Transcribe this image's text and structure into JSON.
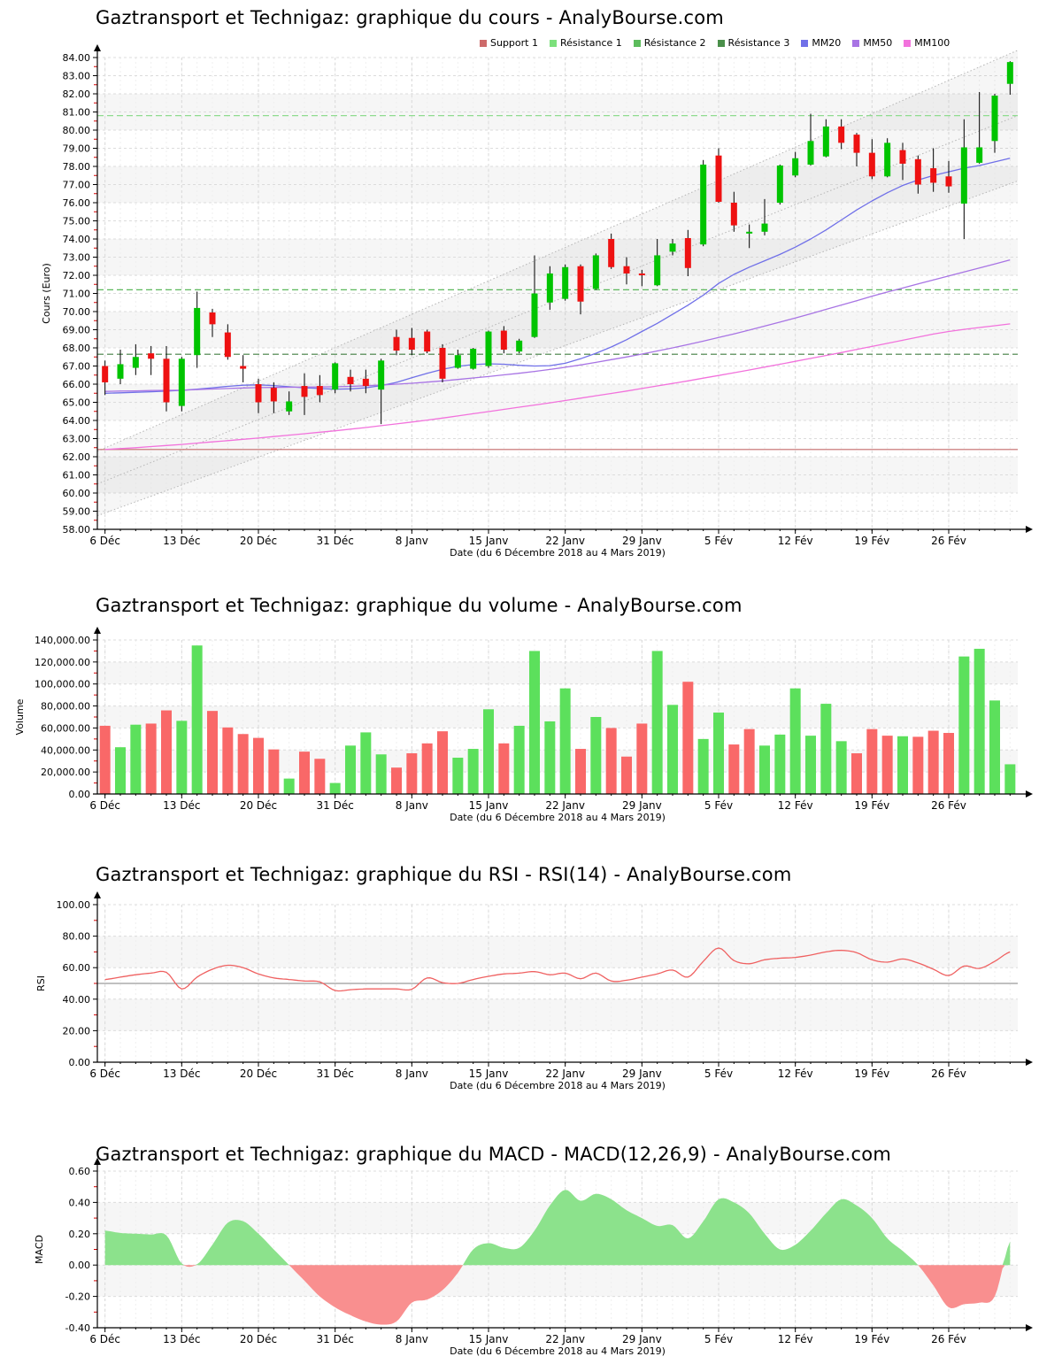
{
  "x_axis": {
    "title": "Date (du 6 Décembre 2018 au 4 Mars 2019)",
    "tick_labels": [
      "6 Déc",
      "13 Déc",
      "20 Déc",
      "31 Déc",
      "8 Janv",
      "15 Janv",
      "22 Janv",
      "29 Janv",
      "5 Fév",
      "12 Fév",
      "19 Fév",
      "26 Fév"
    ],
    "tick_indices": [
      0,
      5,
      10,
      15,
      20,
      25,
      30,
      35,
      40,
      45,
      50,
      55
    ],
    "n_points": 60
  },
  "chart_data": [
    {
      "type": "candlestick",
      "title": "Gaztransport et Technigaz: graphique du cours - AnalyBourse.com",
      "ylabel": "Cours (Euro)",
      "ylim": [
        58,
        84
      ],
      "ystep": 1,
      "up_color": "#00c400",
      "down_color": "#ee1111",
      "legend": [
        {
          "label": "Support 1",
          "color": "#cd6a6a"
        },
        {
          "label": "Résistance 1",
          "color": "#7ce07c"
        },
        {
          "label": "Résistance 2",
          "color": "#5cbc5c"
        },
        {
          "label": "Résistance 3",
          "color": "#4a8f4a"
        },
        {
          "label": "MM20",
          "color": "#7070e8"
        },
        {
          "label": "MM50",
          "color": "#a874e4"
        },
        {
          "label": "MM100",
          "color": "#f272dc"
        }
      ],
      "levels": [
        {
          "name": "Support 1",
          "value": 62.4,
          "color": "#c46a6a",
          "dash": "solid"
        },
        {
          "name": "Résistance 1",
          "value": 80.8,
          "color": "#8fdc8f",
          "dash": "dashed"
        },
        {
          "name": "Résistance 2",
          "value": 71.2,
          "color": "#5cb85c",
          "dash": "dashed"
        },
        {
          "name": "Résistance 3",
          "value": 67.65,
          "color": "#417f41",
          "dash": "dashed"
        }
      ],
      "channel": {
        "top": [
          62.3,
          84.4
        ],
        "mid": [
          60.5,
          80.8
        ],
        "bottom": [
          58.75,
          77.2
        ],
        "color": "#b5b5b5"
      },
      "candles": [
        [
          67.0,
          67.3,
          65.4,
          66.1
        ],
        [
          66.3,
          67.9,
          66.0,
          67.1
        ],
        [
          66.9,
          68.2,
          66.5,
          67.5
        ],
        [
          67.7,
          68.1,
          66.5,
          67.4
        ],
        [
          67.4,
          68.1,
          64.5,
          65.0
        ],
        [
          64.8,
          67.5,
          64.5,
          67.4
        ],
        [
          67.6,
          71.1,
          66.9,
          70.2
        ],
        [
          69.95,
          70.15,
          68.6,
          69.3
        ],
        [
          68.85,
          69.3,
          67.35,
          67.5
        ],
        [
          67.0,
          67.6,
          66.1,
          66.85
        ],
        [
          66.0,
          66.3,
          64.4,
          65.0
        ],
        [
          65.8,
          66.1,
          64.4,
          65.05
        ],
        [
          64.5,
          65.6,
          64.3,
          65.05
        ],
        [
          65.9,
          66.6,
          64.3,
          65.3
        ],
        [
          65.9,
          66.5,
          65.0,
          65.4
        ],
        [
          65.7,
          67.2,
          65.5,
          67.15
        ],
        [
          66.4,
          66.8,
          65.6,
          66.0
        ],
        [
          66.3,
          66.8,
          65.5,
          65.9
        ],
        [
          65.7,
          67.4,
          63.8,
          67.3
        ],
        [
          68.6,
          69.0,
          67.6,
          67.85
        ],
        [
          68.55,
          69.1,
          67.6,
          67.9
        ],
        [
          68.9,
          69.0,
          67.7,
          67.8
        ],
        [
          68.0,
          68.2,
          66.1,
          66.3
        ],
        [
          66.9,
          67.9,
          66.85,
          67.6
        ],
        [
          66.85,
          68.0,
          66.8,
          67.95
        ],
        [
          67.0,
          68.95,
          66.9,
          68.9
        ],
        [
          68.95,
          69.2,
          67.7,
          67.9
        ],
        [
          67.8,
          68.5,
          67.7,
          68.4
        ],
        [
          68.6,
          73.1,
          68.55,
          71.0
        ],
        [
          70.5,
          72.5,
          70.1,
          72.1
        ],
        [
          70.7,
          72.6,
          70.6,
          72.45
        ],
        [
          72.5,
          72.6,
          69.85,
          70.55
        ],
        [
          71.25,
          73.2,
          71.2,
          73.1
        ],
        [
          74.0,
          74.3,
          72.35,
          72.45
        ],
        [
          72.5,
          73.0,
          71.5,
          72.1
        ],
        [
          72.1,
          72.3,
          71.4,
          72.0
        ],
        [
          71.45,
          74.0,
          71.4,
          73.1
        ],
        [
          73.3,
          74.0,
          73.1,
          73.75
        ],
        [
          74.05,
          74.5,
          71.95,
          72.4
        ],
        [
          73.7,
          78.35,
          73.6,
          78.1
        ],
        [
          78.6,
          79.0,
          76.0,
          76.05
        ],
        [
          76.0,
          76.6,
          74.4,
          74.75
        ],
        [
          74.3,
          74.8,
          73.5,
          74.4
        ],
        [
          74.4,
          76.2,
          74.2,
          74.85
        ],
        [
          76.0,
          78.1,
          75.9,
          78.05
        ],
        [
          77.5,
          78.8,
          77.4,
          78.45
        ],
        [
          78.1,
          80.9,
          78.05,
          79.4
        ],
        [
          78.55,
          80.6,
          78.5,
          80.2
        ],
        [
          80.2,
          80.6,
          78.95,
          79.3
        ],
        [
          79.75,
          79.85,
          78.0,
          78.75
        ],
        [
          78.75,
          79.5,
          77.3,
          77.45
        ],
        [
          77.45,
          79.55,
          77.4,
          79.3
        ],
        [
          78.9,
          79.3,
          77.25,
          78.15
        ],
        [
          78.4,
          78.6,
          76.5,
          77.0
        ],
        [
          77.9,
          79.0,
          76.6,
          77.1
        ],
        [
          77.45,
          78.3,
          76.55,
          76.9
        ],
        [
          75.95,
          80.6,
          74.0,
          79.05
        ],
        [
          78.2,
          82.1,
          78.15,
          79.05
        ],
        [
          79.4,
          82.0,
          78.75,
          81.9
        ],
        [
          82.55,
          83.8,
          81.95,
          83.75
        ]
      ],
      "ma": [
        {
          "name": "MM20",
          "color": "#7070e8",
          "values": [
            65.5,
            65.52,
            65.55,
            65.58,
            65.62,
            65.66,
            65.72,
            65.8,
            65.88,
            65.94,
            65.96,
            65.92,
            65.86,
            65.8,
            65.76,
            65.72,
            65.74,
            65.8,
            65.92,
            66.1,
            66.35,
            66.6,
            66.82,
            66.98,
            67.08,
            67.12,
            67.1,
            67.04,
            67.0,
            67.02,
            67.15,
            67.4,
            67.7,
            68.05,
            68.45,
            68.9,
            69.35,
            69.85,
            70.35,
            70.9,
            71.55,
            72.05,
            72.45,
            72.8,
            73.15,
            73.55,
            74.0,
            74.5,
            75.05,
            75.6,
            76.1,
            76.55,
            76.95,
            77.25,
            77.5,
            77.7,
            77.9,
            78.05,
            78.25,
            78.45
          ]
        },
        {
          "name": "MM50",
          "color": "#a874e4",
          "values": [
            65.6,
            65.62,
            65.63,
            65.65,
            65.66,
            65.67,
            65.7,
            65.73,
            65.76,
            65.79,
            65.81,
            65.82,
            65.83,
            65.84,
            65.85,
            65.86,
            65.88,
            65.91,
            65.95,
            66.0,
            66.05,
            66.11,
            66.18,
            66.26,
            66.34,
            66.42,
            66.51,
            66.6,
            66.7,
            66.81,
            66.93,
            67.06,
            67.2,
            67.35,
            67.5,
            67.66,
            67.83,
            68.0,
            68.18,
            68.37,
            68.57,
            68.77,
            68.98,
            69.2,
            69.42,
            69.65,
            69.88,
            70.12,
            70.36,
            70.6,
            70.85,
            71.08,
            71.3,
            71.52,
            71.74,
            71.96,
            72.18,
            72.4,
            72.62,
            72.85
          ]
        },
        {
          "name": "MM100",
          "color": "#f272dc",
          "values": [
            62.4,
            62.45,
            62.5,
            62.56,
            62.62,
            62.68,
            62.75,
            62.82,
            62.89,
            62.96,
            63.03,
            63.11,
            63.19,
            63.27,
            63.35,
            63.43,
            63.52,
            63.61,
            63.71,
            63.81,
            63.91,
            64.02,
            64.13,
            64.25,
            64.37,
            64.49,
            64.61,
            64.73,
            64.85,
            64.97,
            65.1,
            65.23,
            65.36,
            65.49,
            65.62,
            65.76,
            65.9,
            66.04,
            66.18,
            66.33,
            66.48,
            66.63,
            66.78,
            66.94,
            67.1,
            67.26,
            67.42,
            67.58,
            67.74,
            67.91,
            68.08,
            68.25,
            68.42,
            68.59,
            68.76,
            68.9,
            69.02,
            69.12,
            69.22,
            69.32
          ]
        }
      ]
    },
    {
      "type": "bar",
      "title": "Gaztransport et Technigaz: graphique du volume - AnalyBourse.com",
      "ylabel": "Volume",
      "ylim": [
        0,
        140000
      ],
      "ystep": 20000,
      "comma": true,
      "up_color": "#5ce05c",
      "down_color": "#f96868",
      "values": [
        62000,
        42500,
        63000,
        64000,
        76000,
        66500,
        135000,
        75500,
        60500,
        54500,
        51000,
        40500,
        14000,
        38500,
        32000,
        10000,
        44000,
        56000,
        36000,
        24000,
        37000,
        46000,
        57000,
        33000,
        41000,
        77000,
        46000,
        62000,
        130000,
        66000,
        96000,
        41000,
        70000,
        60000,
        34000,
        64000,
        130000,
        81000,
        102000,
        50000,
        74000,
        45000,
        59000,
        44000,
        54000,
        96000,
        53000,
        82000,
        48000,
        37000,
        59000,
        53000,
        52500,
        52000,
        57500,
        55500,
        125000,
        132000,
        85000,
        27000
      ],
      "directions": [
        "d",
        "u",
        "u",
        "d",
        "d",
        "u",
        "u",
        "d",
        "d",
        "d",
        "d",
        "d",
        "u",
        "d",
        "d",
        "u",
        "u",
        "u",
        "u",
        "d",
        "d",
        "d",
        "d",
        "u",
        "u",
        "u",
        "d",
        "u",
        "u",
        "u",
        "u",
        "d",
        "u",
        "d",
        "d",
        "d",
        "u",
        "u",
        "d",
        "u",
        "u",
        "d",
        "d",
        "u",
        "u",
        "u",
        "u",
        "u",
        "u",
        "d",
        "d",
        "d",
        "u",
        "d",
        "d",
        "d",
        "u",
        "u",
        "u",
        "u"
      ]
    },
    {
      "type": "line",
      "title": "Gaztransport et Technigaz: graphique du RSI - RSI(14) - AnalyBourse.com",
      "ylabel": "RSI",
      "ylim": [
        0,
        100
      ],
      "ystep": 20,
      "color": "#ef6161",
      "hline": {
        "value": 50,
        "color": "#808080"
      },
      "values": [
        52.5,
        54,
        55.5,
        56.5,
        57,
        46.5,
        54,
        59,
        61.5,
        60,
        56,
        53.5,
        52.5,
        51.5,
        51,
        45.5,
        46,
        46.5,
        46.5,
        46.5,
        46.3,
        53.5,
        50.5,
        50,
        52.5,
        54.5,
        56,
        56.5,
        57.5,
        55.5,
        56.5,
        53,
        56.5,
        51.5,
        52,
        54,
        56,
        58.5,
        54,
        64,
        72.5,
        64.5,
        62.5,
        65,
        66,
        66.5,
        68,
        70,
        71,
        69.5,
        65,
        63.5,
        65.5,
        63,
        59,
        55,
        61,
        59.5,
        64,
        70
      ]
    },
    {
      "type": "area",
      "title": "Gaztransport et Technigaz: graphique du MACD - MACD(12,26,9) - AnalyBourse.com",
      "ylabel": "MACD",
      "ylim": [
        -0.4,
        0.6
      ],
      "ystep": 0.2,
      "pos_color": "#8ce28c",
      "neg_color": "#f98f8f",
      "values": [
        0.22,
        0.205,
        0.2,
        0.195,
        0.19,
        0.01,
        0.005,
        0.13,
        0.27,
        0.28,
        0.2,
        0.1,
        0,
        -0.1,
        -0.2,
        -0.27,
        -0.32,
        -0.36,
        -0.38,
        -0.36,
        -0.24,
        -0.22,
        -0.16,
        -0.05,
        0.1,
        0.14,
        0.11,
        0.11,
        0.22,
        0.38,
        0.48,
        0.41,
        0.455,
        0.42,
        0.35,
        0.3,
        0.25,
        0.255,
        0.17,
        0.28,
        0.42,
        0.4,
        0.33,
        0.2,
        0.1,
        0.13,
        0.22,
        0.33,
        0.42,
        0.38,
        0.3,
        0.17,
        0.09,
        0,
        -0.13,
        -0.27,
        -0.25,
        -0.24,
        -0.2,
        0.15
      ]
    }
  ]
}
